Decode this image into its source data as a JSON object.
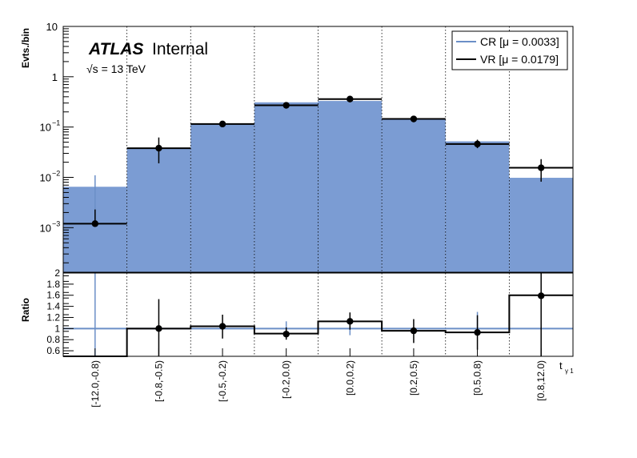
{
  "chart_data": {
    "type": "bar",
    "experiment": "ATLAS",
    "status": "Internal",
    "energy": "√s = 13 TeV",
    "xlabel": "t",
    "xlabel_sub": "γ 1",
    "ylabel": "Evts./bin",
    "ratio_ylabel": "Ratio",
    "log_y": true,
    "ylim": [
      0.00013,
      10
    ],
    "y_ticks": [
      {
        "value": 0.001,
        "base": "10",
        "exp": "−3"
      },
      {
        "value": 0.01,
        "base": "10",
        "exp": "−2"
      },
      {
        "value": 0.1,
        "base": "10",
        "exp": "−1"
      },
      {
        "value": 1,
        "base": "1",
        "exp": ""
      },
      {
        "value": 10,
        "base": "10",
        "exp": ""
      }
    ],
    "ratio_ylim": [
      0.5,
      2.0
    ],
    "ratio_ticks": [
      "0.6",
      "0.8",
      "1",
      "1.2",
      "1.4",
      "1.6",
      "1.8",
      "2"
    ],
    "categories": [
      "[-12.0,-0.8)",
      "[-0.8,-0.5)",
      "[-0.5,-0.2)",
      "[-0.2,0.0)",
      "[0.0,0.2)",
      "[0.2,0.5)",
      "[0.5,0.8)",
      "[0.8,12.0)"
    ],
    "legend_position": "top-right",
    "series": [
      {
        "name": "CR [μ = 0.0033]",
        "style": "filled-histogram",
        "color": "#7b9cd3",
        "line_color": "#6b8fc7",
        "values": [
          0.0065,
          0.038,
          0.115,
          0.31,
          0.33,
          0.14,
          0.052,
          0.0098
        ],
        "err_low": [
          0.0011,
          0.0,
          0.0,
          0.0,
          0.0,
          0.0,
          0.0,
          0.0
        ],
        "err_high": [
          0.011,
          0.0,
          0.0,
          0.0,
          0.0,
          0.0,
          0.0,
          0.0
        ]
      },
      {
        "name": "VR [μ = 0.0179]",
        "style": "points",
        "color": "#000000",
        "values": [
          0.0012,
          0.038,
          0.115,
          0.27,
          0.36,
          0.145,
          0.046,
          0.0155
        ],
        "err_low": [
          0.00113,
          0.019,
          0.104,
          0.25,
          0.33,
          0.125,
          0.038,
          0.0082
        ],
        "err_high": [
          0.0023,
          0.062,
          0.127,
          0.295,
          0.39,
          0.166,
          0.056,
          0.023
        ]
      }
    ],
    "ratio": {
      "values": [
        0.5,
        1.0,
        1.04,
        0.91,
        1.13,
        0.96,
        0.93,
        1.6
      ],
      "points": [
        null,
        1.0,
        1.04,
        0.9,
        1.13,
        0.96,
        0.93,
        1.59
      ],
      "err_low": [
        null,
        0.5,
        0.82,
        0.8,
        0.98,
        0.74,
        0.62,
        0.5
      ],
      "err_high": [
        null,
        1.53,
        1.25,
        1.02,
        1.29,
        1.17,
        1.24,
        2.0
      ],
      "reference": 1.0,
      "reference_err": [
        [
          0.5,
          2.0
        ],
        [
          1.0,
          1.0
        ],
        [
          1.0,
          1.0
        ],
        [
          0.96,
          1.13
        ],
        [
          0.88,
          1.13
        ],
        [
          1.0,
          1.0
        ],
        [
          0.9,
          1.3
        ],
        [
          1.0,
          1.0
        ]
      ]
    }
  }
}
